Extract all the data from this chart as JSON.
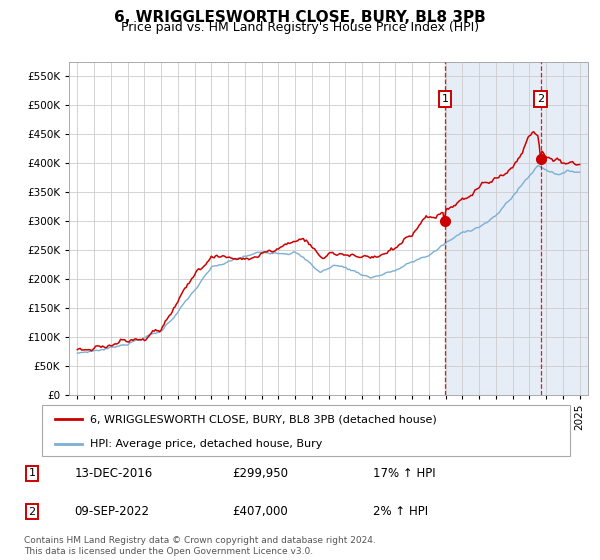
{
  "title": "6, WRIGGLESWORTH CLOSE, BURY, BL8 3PB",
  "subtitle": "Price paid vs. HM Land Registry's House Price Index (HPI)",
  "yticks": [
    0,
    50000,
    100000,
    150000,
    200000,
    250000,
    300000,
    350000,
    400000,
    450000,
    500000,
    550000
  ],
  "ylim": [
    0,
    575000
  ],
  "x_start_year": 1995,
  "x_end_year": 2025,
  "marker1_year": 2016.95,
  "marker1_price": 299950,
  "marker1_date": "13-DEC-2016",
  "marker1_hpi": "17% ↑ HPI",
  "marker2_year": 2022.67,
  "marker2_price": 407000,
  "marker2_date": "09-SEP-2022",
  "marker2_hpi": "2% ↑ HPI",
  "legend_line1": "6, WRIGGLESWORTH CLOSE, BURY, BL8 3PB (detached house)",
  "legend_line2": "HPI: Average price, detached house, Bury",
  "footer": "Contains HM Land Registry data © Crown copyright and database right 2024.\nThis data is licensed under the Open Government Licence v3.0.",
  "red_color": "#cc0000",
  "blue_color": "#7bafd4",
  "background_shading": "#dce6f5",
  "grid_color": "#cccccc",
  "title_fontsize": 11,
  "subtitle_fontsize": 9,
  "axis_fontsize": 7.5
}
